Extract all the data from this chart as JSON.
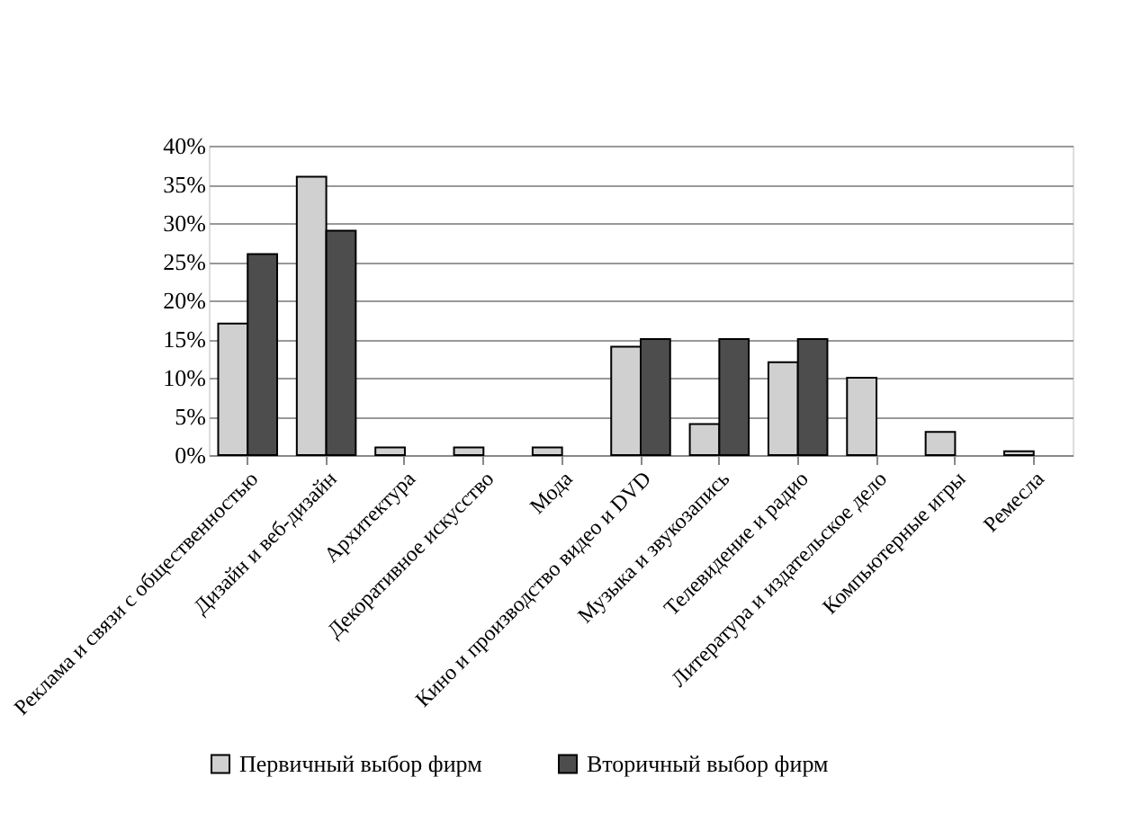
{
  "chart_data": {
    "type": "bar",
    "categories": [
      "Реклама и связи с общественностью",
      "Дизайн и веб-дизайн",
      "Архитектура",
      "Декоративное искусство",
      "Мода",
      "Кино и производство видео и DVD",
      "Музыка и звукозапись",
      "Телевидение и радио",
      "Литература и издательское дело",
      "Компьютерные игры",
      "Ремесла"
    ],
    "series": [
      {
        "name": "Первичный выбор фирм",
        "color": "#d0d0d0",
        "values": [
          17,
          36,
          1,
          1,
          1,
          14,
          4,
          12,
          10,
          3,
          0.5
        ]
      },
      {
        "name": "Вторичный выбор фирм",
        "color": "#4d4d4d",
        "values": [
          26,
          29,
          null,
          null,
          null,
          15,
          15,
          15,
          null,
          null,
          null
        ]
      }
    ],
    "ylim": [
      0,
      40
    ],
    "yticks": [
      {
        "value": 0,
        "label": "0%"
      },
      {
        "value": 5,
        "label": "5%"
      },
      {
        "value": 10,
        "label": "10%"
      },
      {
        "value": 15,
        "label": "15%"
      },
      {
        "value": 20,
        "label": "20%"
      },
      {
        "value": 25,
        "label": "25%"
      },
      {
        "value": 30,
        "label": "30%"
      },
      {
        "value": 35,
        "label": "35%"
      },
      {
        "value": 40,
        "label": "40%"
      }
    ],
    "grid": "y",
    "legend": "bottom"
  }
}
